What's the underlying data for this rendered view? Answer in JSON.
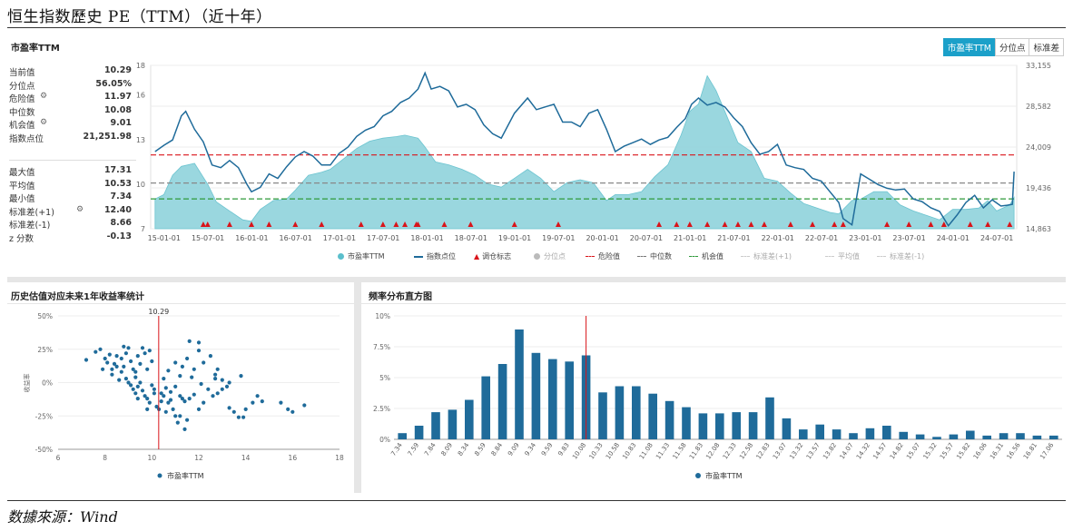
{
  "page_title": "恒生指数歷史 PE（TTM）（近十年）",
  "source": "数據來源：Wind",
  "top": {
    "title": "市盈率TTM",
    "tabs": [
      "市盈率TTM",
      "分位点",
      "标准差"
    ],
    "stats_top": [
      {
        "label": "当前值",
        "value": "10.29"
      },
      {
        "label": "分位点",
        "value": "56.05%"
      },
      {
        "label": "危险值",
        "value": "11.97",
        "icon": "gear-icon"
      },
      {
        "label": "中位数",
        "value": "10.08"
      },
      {
        "label": "机会值",
        "value": "9.01",
        "icon": "gear-icon"
      },
      {
        "label": "指数点位",
        "value": "21,251.98"
      }
    ],
    "stats_bottom": [
      {
        "label": "最大值",
        "value": "17.31"
      },
      {
        "label": "平均值",
        "value": "10.53"
      },
      {
        "label": "最小值",
        "value": "7.34"
      },
      {
        "label": "标准差(+1)",
        "value": "12.40",
        "icon": "gear-icon"
      },
      {
        "label": "标准差(-1)",
        "value": "8.66"
      },
      {
        "label": "z 分数",
        "value": "-0.13"
      }
    ],
    "legend": [
      {
        "label": "市盈率TTM",
        "kind": "dot",
        "color": "#5bbfcc"
      },
      {
        "label": "指数点位",
        "kind": "line",
        "color": "#1f6b9a"
      },
      {
        "label": "调仓标志",
        "kind": "triangle",
        "color": "#d9141a"
      },
      {
        "label": "分位点",
        "kind": "dot",
        "color": "#bbbbbb"
      },
      {
        "label": "危险值",
        "kind": "dash",
        "color": "#d9141a"
      },
      {
        "label": "中位数",
        "kind": "dash",
        "color": "#777777"
      },
      {
        "label": "机会值",
        "kind": "dash",
        "color": "#2e9a3a"
      },
      {
        "label": "标准差(+1)",
        "kind": "dash",
        "color": "#cccccc"
      },
      {
        "label": "平均值",
        "kind": "dash",
        "color": "#cccccc"
      },
      {
        "label": "标准差(-1)",
        "kind": "dash",
        "color": "#cccccc"
      }
    ]
  },
  "scatter_panel": {
    "title": "历史估值对应未来1年收益率统计",
    "ylabel": "收益率",
    "ref_label": "10.29"
  },
  "hist_panel": {
    "title": "频率分布直方图"
  },
  "chart_data": [
    {
      "type": "area",
      "title": "市盈率TTM",
      "x_ticks": [
        "15-01-01",
        "15-07-01",
        "16-01-01",
        "16-07-01",
        "17-01-01",
        "17-07-01",
        "18-01-01",
        "18-07-01",
        "19-01-01",
        "19-07-01",
        "20-01-01",
        "20-07-01",
        "21-01-01",
        "21-07-01",
        "22-01-01",
        "22-07-01",
        "23-01-01",
        "23-07-01",
        "24-01-01",
        "24-07-01"
      ],
      "y_left_ticks": [
        "7",
        "10",
        "13",
        "16",
        "18"
      ],
      "y_left_lim": [
        7,
        18
      ],
      "y_right_ticks": [
        "14,863",
        "19,436",
        "24,009",
        "28,582",
        "33,155"
      ],
      "y_right_lim": [
        14863,
        33155
      ],
      "pe_series": {
        "name": "市盈率TTM",
        "x": [
          2015.0,
          2015.1,
          2015.2,
          2015.3,
          2015.45,
          2015.6,
          2015.7,
          2015.85,
          2016.0,
          2016.1,
          2016.2,
          2016.35,
          2016.5,
          2016.6,
          2016.75,
          2016.9,
          2017.0,
          2017.15,
          2017.3,
          2017.45,
          2017.6,
          2017.75,
          2017.85,
          2018.0,
          2018.08,
          2018.2,
          2018.35,
          2018.5,
          2018.65,
          2018.8,
          2018.95,
          2019.1,
          2019.25,
          2019.4,
          2019.55,
          2019.7,
          2019.85,
          2020.0,
          2020.15,
          2020.25,
          2020.4,
          2020.55,
          2020.7,
          2020.85,
          2021.0,
          2021.1,
          2021.2,
          2021.3,
          2021.4,
          2021.5,
          2021.65,
          2021.8,
          2021.95,
          2022.1,
          2022.25,
          2022.4,
          2022.55,
          2022.7,
          2022.8,
          2022.95,
          2023.05,
          2023.2,
          2023.35,
          2023.5,
          2023.65,
          2023.8,
          2023.95,
          2024.1,
          2024.25,
          2024.4,
          2024.5,
          2024.6,
          2024.75,
          2024.8
        ],
        "values": [
          9.0,
          9.3,
          10.6,
          11.2,
          11.4,
          10.0,
          8.8,
          8.2,
          7.6,
          7.5,
          8.3,
          8.9,
          9.0,
          9.6,
          10.6,
          10.8,
          11.0,
          11.7,
          12.4,
          12.9,
          13.1,
          13.2,
          13.3,
          13.1,
          12.5,
          11.5,
          11.3,
          11.0,
          10.6,
          10.0,
          9.8,
          10.4,
          11.0,
          10.4,
          9.5,
          10.1,
          10.3,
          10.1,
          8.9,
          9.3,
          9.3,
          9.5,
          10.5,
          11.3,
          13.3,
          14.9,
          15.4,
          17.3,
          16.3,
          14.9,
          12.8,
          12.2,
          10.4,
          10.2,
          9.4,
          8.7,
          8.4,
          8.1,
          8.0,
          8.9,
          9.0,
          9.5,
          9.5,
          8.6,
          8.2,
          7.9,
          7.6,
          8.3,
          8.3,
          8.4,
          8.9,
          8.2,
          8.6,
          9.1
        ]
      },
      "index_series": {
        "name": "指数点位",
        "x": [
          2015.0,
          2015.1,
          2015.2,
          2015.3,
          2015.35,
          2015.45,
          2015.55,
          2015.65,
          2015.75,
          2015.85,
          2015.95,
          2016.05,
          2016.1,
          2016.2,
          2016.3,
          2016.4,
          2016.5,
          2016.6,
          2016.7,
          2016.8,
          2016.9,
          2017.0,
          2017.1,
          2017.2,
          2017.3,
          2017.4,
          2017.5,
          2017.6,
          2017.7,
          2017.8,
          2017.9,
          2018.0,
          2018.08,
          2018.15,
          2018.25,
          2018.35,
          2018.45,
          2018.55,
          2018.65,
          2018.75,
          2018.85,
          2018.95,
          2019.1,
          2019.25,
          2019.35,
          2019.45,
          2019.55,
          2019.65,
          2019.75,
          2019.85,
          2019.95,
          2020.05,
          2020.15,
          2020.25,
          2020.35,
          2020.45,
          2020.55,
          2020.65,
          2020.75,
          2020.85,
          2020.95,
          2021.05,
          2021.12,
          2021.2,
          2021.3,
          2021.4,
          2021.5,
          2021.6,
          2021.7,
          2021.8,
          2021.9,
          2022.0,
          2022.1,
          2022.2,
          2022.3,
          2022.4,
          2022.5,
          2022.6,
          2022.7,
          2022.8,
          2022.85,
          2022.95,
          2023.05,
          2023.15,
          2023.25,
          2023.35,
          2023.45,
          2023.55,
          2023.65,
          2023.75,
          2023.85,
          2023.95,
          2024.05,
          2024.15,
          2024.25,
          2024.35,
          2024.45,
          2024.55,
          2024.65,
          2024.72,
          2024.78,
          2024.8
        ],
        "values": [
          23500,
          24200,
          24800,
          27500,
          28000,
          26000,
          24600,
          22000,
          21700,
          22500,
          21700,
          19800,
          19000,
          19500,
          21000,
          20500,
          21800,
          22900,
          23500,
          23000,
          22000,
          22000,
          23300,
          24000,
          25200,
          25900,
          26300,
          27500,
          28000,
          29000,
          29500,
          30500,
          32300,
          30500,
          30800,
          30300,
          28500,
          28800,
          28200,
          26500,
          25500,
          25000,
          27800,
          29500,
          28200,
          28500,
          28800,
          26800,
          26800,
          26300,
          27800,
          28200,
          26000,
          23500,
          24100,
          24500,
          24900,
          24300,
          24800,
          25100,
          26200,
          27200,
          28800,
          29500,
          28700,
          29000,
          28500,
          27300,
          26300,
          24500,
          23200,
          23500,
          24300,
          22000,
          21700,
          21500,
          20500,
          20200,
          19000,
          17800,
          16000,
          15300,
          21000,
          20400,
          19800,
          19400,
          19200,
          19300,
          18200,
          17900,
          17200,
          16800,
          15200,
          16400,
          17800,
          18600,
          17200,
          18100,
          17400,
          17500,
          17600,
          21252
        ]
      },
      "danger_value": 11.97,
      "median_value": 10.08,
      "opportunity_value": 9.01,
      "rebalance_markers": [
        2015.55,
        2015.6,
        2015.85,
        2016.1,
        2016.3,
        2016.6,
        2016.9,
        2017.35,
        2017.6,
        2017.75,
        2017.85,
        2017.98,
        2018.0,
        2018.3,
        2018.6,
        2019.1,
        2019.6,
        2020.75,
        2020.95,
        2021.1,
        2021.3,
        2021.5,
        2021.65,
        2021.8,
        2021.95,
        2022.25,
        2022.5,
        2022.75,
        2022.85,
        2023.35,
        2023.6,
        2023.85,
        2024.0,
        2024.3,
        2024.5,
        2024.75
      ]
    },
    {
      "type": "scatter",
      "title": "历史估值对应未来1年收益率统计",
      "ylabel": "收益率",
      "xlim": [
        6,
        18
      ],
      "ylim": [
        -50,
        50
      ],
      "x_ticks": [
        "6",
        "8",
        "10",
        "12",
        "14",
        "16",
        "18"
      ],
      "y_ticks": [
        "50%",
        "25%",
        "0%",
        "-25%",
        "-50%"
      ],
      "reference_x": 10.29,
      "series": [
        {
          "name": "市盈率TTM",
          "points": [
            [
              7.2,
              17
            ],
            [
              7.6,
              23
            ],
            [
              7.8,
              25
            ],
            [
              7.9,
              10
            ],
            [
              8.0,
              18
            ],
            [
              8.1,
              15
            ],
            [
              8.2,
              21
            ],
            [
              8.3,
              6
            ],
            [
              8.4,
              14
            ],
            [
              8.5,
              20
            ],
            [
              8.6,
              2
            ],
            [
              8.7,
              18
            ],
            [
              8.8,
              27
            ],
            [
              8.9,
              22
            ],
            [
              9.0,
              26
            ],
            [
              9.1,
              16
            ],
            [
              9.2,
              10
            ],
            [
              9.3,
              4
            ],
            [
              9.4,
              20
            ],
            [
              9.5,
              14
            ],
            [
              9.6,
              26
            ],
            [
              9.7,
              22
            ],
            [
              9.8,
              10
            ],
            [
              9.9,
              24
            ],
            [
              10.0,
              16
            ],
            [
              8.3,
              10
            ],
            [
              8.5,
              12
            ],
            [
              8.7,
              8
            ],
            [
              8.9,
              3
            ],
            [
              9.0,
              0
            ],
            [
              9.1,
              -2
            ],
            [
              9.2,
              -5
            ],
            [
              9.3,
              -8
            ],
            [
              9.4,
              -3
            ],
            [
              9.5,
              0
            ],
            [
              9.6,
              -6
            ],
            [
              9.7,
              -10
            ],
            [
              9.8,
              -12
            ],
            [
              9.9,
              -15
            ],
            [
              10.0,
              -2
            ],
            [
              10.1,
              -5
            ],
            [
              10.2,
              -18
            ],
            [
              10.3,
              -20
            ],
            [
              10.4,
              -8
            ],
            [
              10.5,
              -10
            ],
            [
              10.6,
              -22
            ],
            [
              10.7,
              -15
            ],
            [
              10.8,
              -13
            ],
            [
              10.9,
              -20
            ],
            [
              11.0,
              -25
            ],
            [
              11.1,
              -30
            ],
            [
              11.2,
              -25
            ],
            [
              11.3,
              -12
            ],
            [
              11.4,
              -35
            ],
            [
              11.5,
              -28
            ],
            [
              10.5,
              3
            ],
            [
              10.6,
              -4
            ],
            [
              10.8,
              -7
            ],
            [
              11.0,
              -3
            ],
            [
              11.2,
              -10
            ],
            [
              11.4,
              -14
            ],
            [
              11.6,
              -12
            ],
            [
              11.8,
              -9
            ],
            [
              12.0,
              -20
            ],
            [
              12.2,
              -15
            ],
            [
              12.4,
              -5
            ],
            [
              12.6,
              -10
            ],
            [
              12.8,
              -8
            ],
            [
              13.0,
              2
            ],
            [
              13.2,
              -3
            ],
            [
              11.0,
              15
            ],
            [
              11.3,
              12
            ],
            [
              11.5,
              18
            ],
            [
              11.8,
              10
            ],
            [
              12.0,
              24
            ],
            [
              12.2,
              15
            ],
            [
              12.5,
              20
            ],
            [
              12.8,
              10
            ],
            [
              13.0,
              -5
            ],
            [
              13.3,
              0
            ],
            [
              13.5,
              -22
            ],
            [
              13.7,
              -26
            ],
            [
              13.9,
              -26
            ],
            [
              14.0,
              -20
            ],
            [
              14.3,
              -15
            ],
            [
              14.5,
              -10
            ],
            [
              14.7,
              -14
            ],
            [
              15.5,
              -15
            ],
            [
              15.8,
              -20
            ],
            [
              16.0,
              -22
            ],
            [
              16.5,
              -17
            ],
            [
              9.4,
              -12
            ],
            [
              9.8,
              -20
            ],
            [
              10.1,
              -8
            ],
            [
              10.4,
              -14
            ],
            [
              11.2,
              5
            ],
            [
              11.7,
              4
            ],
            [
              12.1,
              -1
            ],
            [
              12.7,
              3
            ],
            [
              13.8,
              5
            ],
            [
              9.3,
              8
            ],
            [
              8.8,
              12
            ],
            [
              10.7,
              9
            ],
            [
              11.6,
              31
            ],
            [
              12.0,
              30
            ],
            [
              12.7,
              6
            ],
            [
              13.3,
              -19
            ]
          ]
        }
      ]
    },
    {
      "type": "bar",
      "title": "频率分布直方图",
      "categories": [
        "7.34",
        "7.59",
        "7.84",
        "8.09",
        "8.34",
        "8.59",
        "8.84",
        "9.09",
        "9.34",
        "9.59",
        "9.83",
        "10.08",
        "10.33",
        "10.58",
        "10.83",
        "11.08",
        "11.33",
        "11.58",
        "11.83",
        "12.08",
        "12.33",
        "12.58",
        "12.83",
        "13.07",
        "13.32",
        "13.57",
        "13.82",
        "14.07",
        "14.32",
        "14.57",
        "14.82",
        "15.07",
        "15.32",
        "15.57",
        "15.82",
        "16.06",
        "16.31",
        "16.56",
        "16.81",
        "17.06"
      ],
      "values": [
        0.5,
        1.1,
        2.2,
        2.4,
        3.2,
        5.1,
        6.1,
        8.9,
        7.0,
        6.5,
        6.3,
        6.8,
        3.8,
        4.3,
        4.3,
        3.7,
        3.1,
        2.6,
        2.1,
        2.1,
        2.2,
        2.2,
        3.4,
        1.7,
        0.8,
        1.2,
        0.8,
        0.5,
        0.9,
        1.1,
        0.6,
        0.4,
        0.2,
        0.4,
        0.7,
        0.3,
        0.5,
        0.5,
        0.3,
        0.3
      ],
      "ylim": [
        0,
        10
      ],
      "y_ticks": [
        "10%",
        "7.5%",
        "5%",
        "2.5%",
        "0%"
      ],
      "reference_category": "10.08",
      "legend": "市盈率TTM"
    }
  ]
}
